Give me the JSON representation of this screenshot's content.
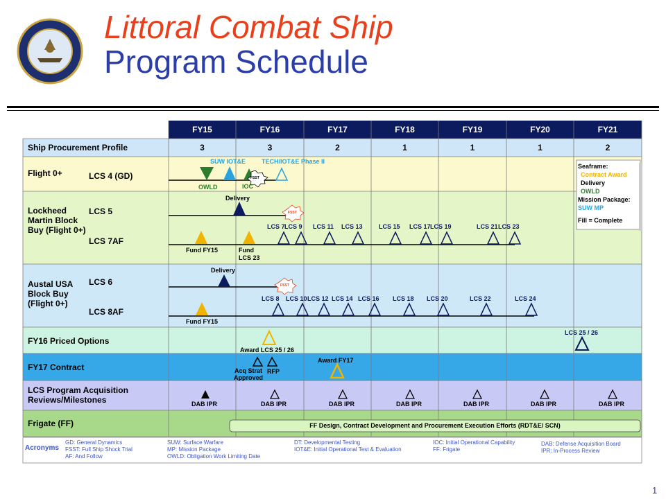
{
  "title": {
    "line1": "Littoral Combat Ship",
    "line2": "Program Schedule"
  },
  "page_number": "1",
  "fiscal_years": [
    "FY15",
    "FY16",
    "FY17",
    "FY18",
    "FY19",
    "FY20",
    "FY21"
  ],
  "procurement": {
    "label": "Ship Procurement Profile",
    "counts": [
      "3",
      "3",
      "2",
      "1",
      "1",
      "1",
      "2"
    ]
  },
  "rows": {
    "flight0": {
      "label": "Flight 0+",
      "sub": "LCS 4 (GD)",
      "ann": {
        "suw": "SUW IOT&E",
        "tech": "TECH/IOT&E Phase II",
        "owld": "OWLD",
        "ioc": "IOC",
        "fsst": "FSST"
      }
    },
    "lm": {
      "label": "Lockheed Martin Block Buy (Flight 0+)",
      "sub1": "LCS 5",
      "sub2": "LCS 7AF",
      "delivery": "Delivery",
      "fsst": "FSST",
      "fund1": "Fund FY15",
      "fund2": "Fund LCS 23",
      "ships": [
        "LCS 7",
        "LCS 9",
        "LCS 11",
        "LCS 13",
        "LCS 15",
        "LCS 17",
        "LCS 19",
        "LCS 21",
        "LCS 23"
      ]
    },
    "austal": {
      "label": "Austal USA Block Buy (Flight 0+)",
      "sub1": "LCS 6",
      "sub2": "LCS 8AF",
      "delivery": "Delivery",
      "fsst": "FSST",
      "fund1": "Fund FY15",
      "ships": [
        "LCS 8",
        "LCS 10",
        "LCS 12",
        "LCS 14",
        "LCS 16",
        "LCS 18",
        "LCS 20",
        "LCS 22",
        "LCS 24"
      ]
    },
    "fy16": {
      "label": "FY16 Priced Options",
      "award": "Award LCS 25 / 26",
      "lcs": "LCS 25 / 26"
    },
    "fy17": {
      "label": "FY17 Contract",
      "acq": "Acq Strat Approved",
      "rfp": "RFP",
      "award": "Award FY17"
    },
    "reviews": {
      "label": "LCS Program Acquisition Reviews/Milestones",
      "marker": "DAB IPR"
    },
    "frigate": {
      "label": "Frigate (FF)",
      "bar": "FF Design, Contract Development and Procurement Execution Efforts (RDT&E/ SCN)"
    }
  },
  "legend": {
    "seaframe": "Seaframe:",
    "contract_award": "Contract Award",
    "delivery": "Delivery",
    "owld": "OWLD",
    "mission_package": "Mission Package:",
    "suw_mp": "SUW MP",
    "fill": "Fill = Complete"
  },
  "acronyms": {
    "label": "Acronyms",
    "col1": [
      "GD: General Dynamics",
      "FSST: Full Ship Shock Trial",
      "AF: And Follow"
    ],
    "col2": [
      "SUW: Surface Warfare",
      "MP: Mission Package",
      "OWLD: Obligation Work Limiting Date"
    ],
    "col3": [
      "DT: Developmental Testing",
      "IOT&E: Initial Operational Test & Evaluation"
    ],
    "col4": [
      "IOC: Initial Operational Capability",
      "FF: Frigate"
    ],
    "col5": [
      "DAB: Defense Acquisition Board",
      "IPR: In-Process Review"
    ]
  },
  "colors": {
    "header": "#0c1a5e",
    "title_red": "#e8401c",
    "title_blue": "#2b3da8",
    "gold": "#f0b400",
    "green": "#2e7d2e",
    "cyan": "#29a3e0"
  }
}
